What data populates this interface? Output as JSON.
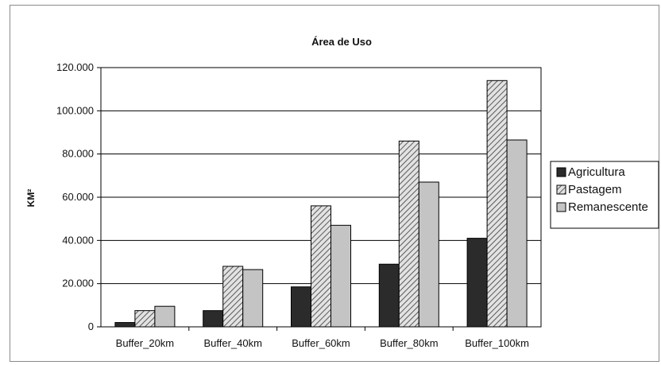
{
  "chart_data": {
    "type": "bar",
    "title": "Área de Uso",
    "ylabel": "KM²",
    "xlabel": "",
    "categories": [
      "Buffer_20km",
      "Buffer_40km",
      "Buffer_60km",
      "Buffer_80km",
      "Buffer_100km"
    ],
    "series": [
      {
        "name": "Agricultura",
        "values": [
          2000,
          7500,
          18500,
          29000,
          41000
        ],
        "color": "#2b2b2b",
        "fill": "solid"
      },
      {
        "name": "Pastagem",
        "values": [
          7500,
          28000,
          56000,
          86000,
          114000
        ],
        "color": "#cfcfcf",
        "fill": "hatch"
      },
      {
        "name": "Remanescente",
        "values": [
          9500,
          26500,
          47000,
          67000,
          86500
        ],
        "color": "#c4c4c4",
        "fill": "solid"
      }
    ],
    "ylim": [
      0,
      120000
    ],
    "yticks": [
      "0",
      "20.000",
      "40.000",
      "60.000",
      "80.000",
      "100.000",
      "120.000"
    ],
    "grid": true,
    "legend_position": "right"
  }
}
